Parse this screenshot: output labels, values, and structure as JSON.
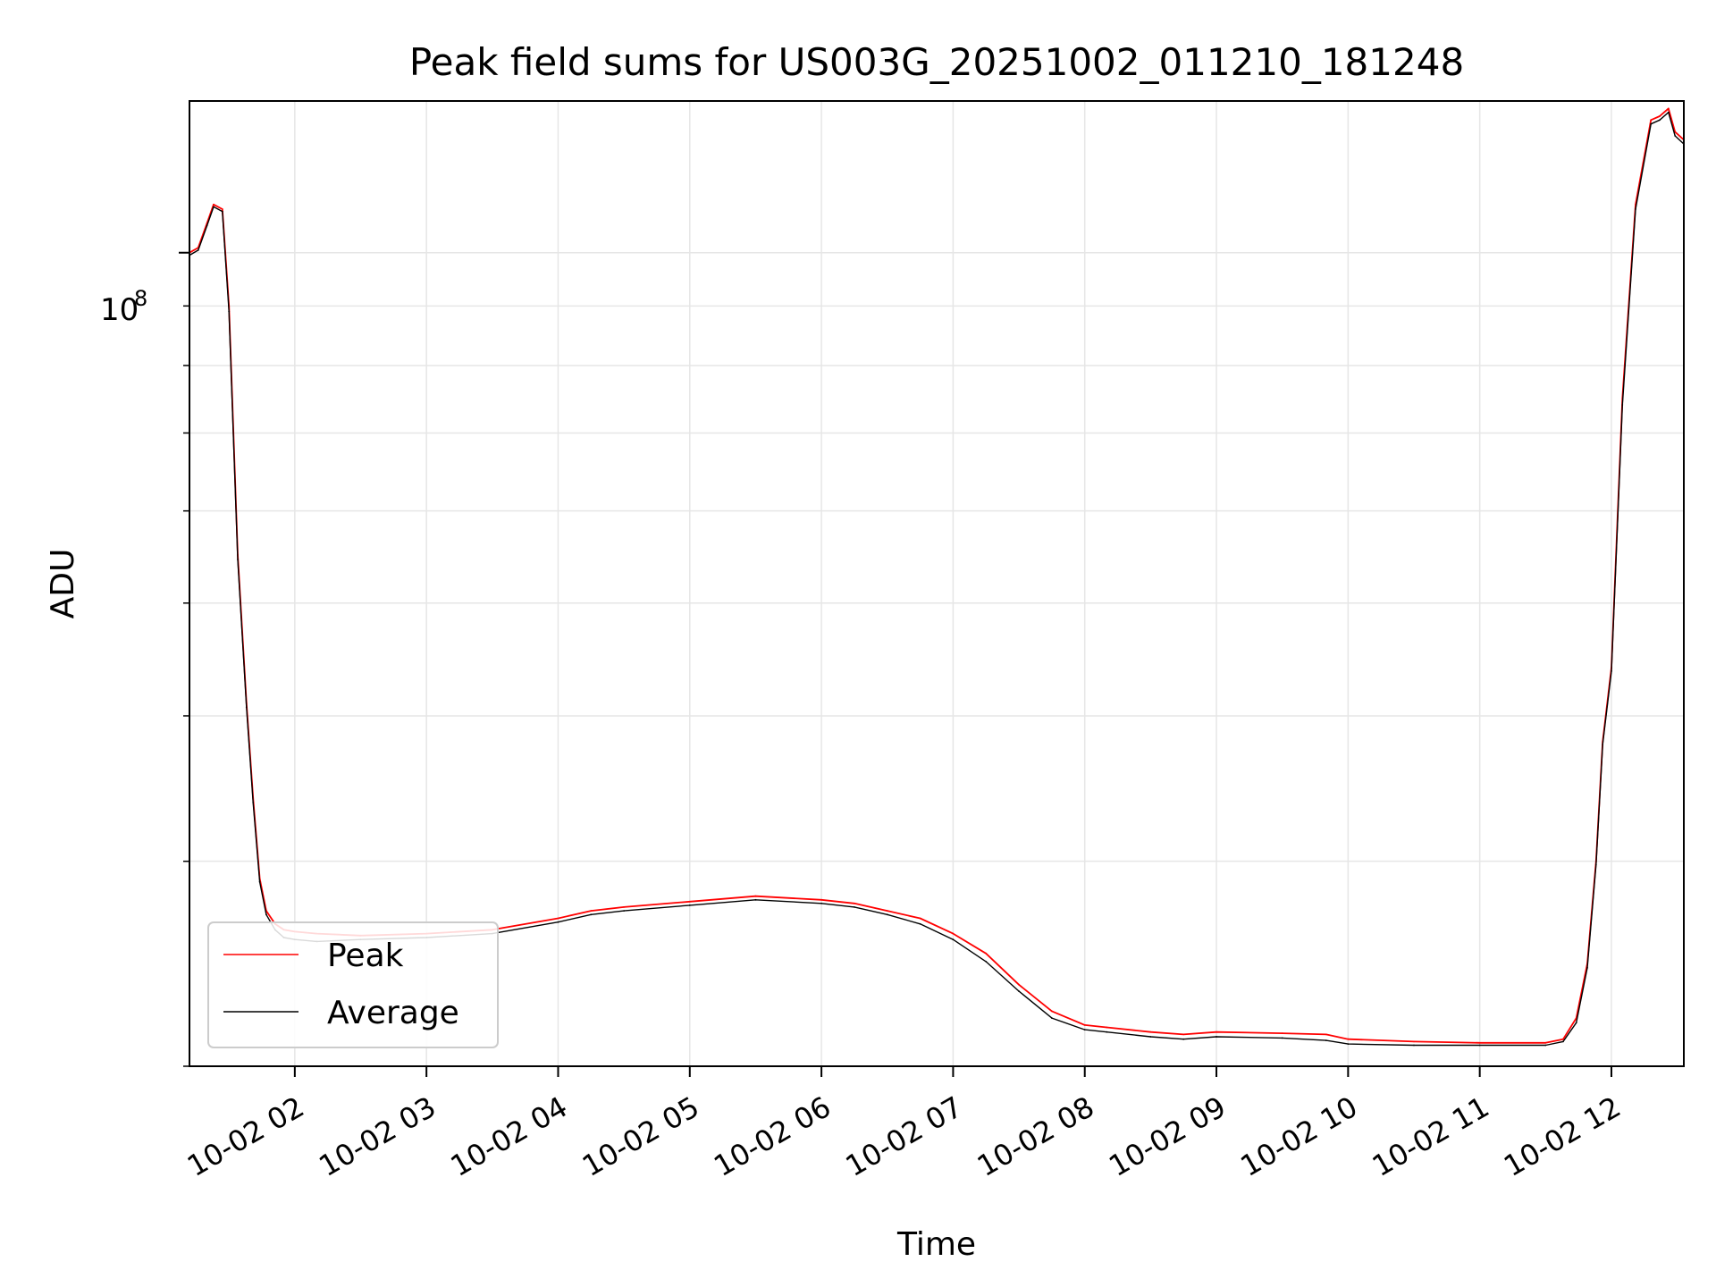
{
  "chart_data": {
    "type": "line",
    "title": "Peak field sums for US003G_20251002_011210_181248",
    "xlabel": "Time",
    "ylabel": "ADU",
    "yscale": "log",
    "xlim": [
      "2025-10-02 01:12",
      "2025-10-02 12:33"
    ],
    "ylim": [
      20000000,
      135000000
    ],
    "x_ticks": [
      "10-02 02",
      "10-02 03",
      "10-02 04",
      "10-02 05",
      "10-02 06",
      "10-02 07",
      "10-02 08",
      "10-02 09",
      "10-02 10",
      "10-02 11",
      "10-02 12"
    ],
    "y_ticks": [
      {
        "value": 100000000,
        "label": "10",
        "exponent": "8"
      }
    ],
    "y_minor_ticks": [
      20000000,
      30000000,
      40000000,
      50000000,
      60000000,
      70000000,
      80000000,
      90000000
    ],
    "grid": true,
    "legend": "lower-left",
    "series": [
      {
        "name": "Peak",
        "color": "#ff0000",
        "x": [
          "2025-10-02 01:12",
          "2025-10-02 01:16",
          "2025-10-02 01:20",
          "2025-10-02 01:23",
          "2025-10-02 01:27",
          "2025-10-02 01:30",
          "2025-10-02 01:34",
          "2025-10-02 01:38",
          "2025-10-02 01:41",
          "2025-10-02 01:44",
          "2025-10-02 01:47",
          "2025-10-02 01:51",
          "2025-10-02 01:55",
          "2025-10-02 02:00",
          "2025-10-02 02:10",
          "2025-10-02 02:30",
          "2025-10-02 03:00",
          "2025-10-02 03:30",
          "2025-10-02 04:00",
          "2025-10-02 04:15",
          "2025-10-02 04:30",
          "2025-10-02 05:00",
          "2025-10-02 05:30",
          "2025-10-02 06:00",
          "2025-10-02 06:15",
          "2025-10-02 06:30",
          "2025-10-02 06:45",
          "2025-10-02 07:00",
          "2025-10-02 07:15",
          "2025-10-02 07:30",
          "2025-10-02 07:45",
          "2025-10-02 08:00",
          "2025-10-02 08:10",
          "2025-10-02 08:30",
          "2025-10-02 08:45",
          "2025-10-02 09:00",
          "2025-10-02 09:30",
          "2025-10-02 09:50",
          "2025-10-02 10:00",
          "2025-10-02 10:30",
          "2025-10-02 11:00",
          "2025-10-02 11:30",
          "2025-10-02 11:38",
          "2025-10-02 11:44",
          "2025-10-02 11:49",
          "2025-10-02 11:53",
          "2025-10-02 11:56",
          "2025-10-02 12:00",
          "2025-10-02 12:05",
          "2025-10-02 12:11",
          "2025-10-02 12:18",
          "2025-10-02 12:22",
          "2025-10-02 12:26",
          "2025-10-02 12:29",
          "2025-10-02 12:33"
        ],
        "values": [
          100000000,
          101000000,
          106000000,
          110000000,
          109000000,
          90000000,
          55000000,
          41000000,
          34000000,
          29000000,
          27200000,
          26500000,
          26200000,
          26100000,
          26000000,
          25900000,
          26000000,
          26200000,
          26800000,
          27200000,
          27400000,
          27700000,
          28000000,
          27800000,
          27600000,
          27200000,
          26800000,
          26000000,
          25000000,
          23500000,
          22300000,
          21700000,
          21600000,
          21400000,
          21300000,
          21400000,
          21350000,
          21300000,
          21100000,
          21000000,
          20950000,
          20950000,
          21100000,
          22000000,
          24500000,
          30000000,
          38000000,
          44000000,
          75000000,
          110000000,
          130000000,
          131000000,
          133000000,
          127000000,
          125000000
        ]
      },
      {
        "name": "Average",
        "color": "#000000",
        "x": [
          "2025-10-02 01:12",
          "2025-10-02 01:16",
          "2025-10-02 01:20",
          "2025-10-02 01:23",
          "2025-10-02 01:27",
          "2025-10-02 01:30",
          "2025-10-02 01:34",
          "2025-10-02 01:38",
          "2025-10-02 01:41",
          "2025-10-02 01:44",
          "2025-10-02 01:47",
          "2025-10-02 01:51",
          "2025-10-02 01:55",
          "2025-10-02 02:00",
          "2025-10-02 02:10",
          "2025-10-02 02:30",
          "2025-10-02 03:00",
          "2025-10-02 03:30",
          "2025-10-02 04:00",
          "2025-10-02 04:15",
          "2025-10-02 04:30",
          "2025-10-02 05:00",
          "2025-10-02 05:30",
          "2025-10-02 06:00",
          "2025-10-02 06:15",
          "2025-10-02 06:30",
          "2025-10-02 06:45",
          "2025-10-02 07:00",
          "2025-10-02 07:15",
          "2025-10-02 07:30",
          "2025-10-02 07:45",
          "2025-10-02 08:00",
          "2025-10-02 08:10",
          "2025-10-02 08:30",
          "2025-10-02 08:45",
          "2025-10-02 09:00",
          "2025-10-02 09:30",
          "2025-10-02 09:50",
          "2025-10-02 10:00",
          "2025-10-02 10:30",
          "2025-10-02 11:00",
          "2025-10-02 11:30",
          "2025-10-02 11:38",
          "2025-10-02 11:44",
          "2025-10-02 11:49",
          "2025-10-02 11:53",
          "2025-10-02 11:56",
          "2025-10-02 12:00",
          "2025-10-02 12:05",
          "2025-10-02 12:11",
          "2025-10-02 12:18",
          "2025-10-02 12:22",
          "2025-10-02 12:26",
          "2025-10-02 12:29",
          "2025-10-02 12:33"
        ],
        "values": [
          99500000,
          100500000,
          105500000,
          109500000,
          108500000,
          89000000,
          54500000,
          40700000,
          33700000,
          28800000,
          27000000,
          26200000,
          25800000,
          25700000,
          25600000,
          25700000,
          25800000,
          26000000,
          26600000,
          27000000,
          27200000,
          27500000,
          27800000,
          27600000,
          27400000,
          27000000,
          26500000,
          25700000,
          24600000,
          23200000,
          22000000,
          21500000,
          21400000,
          21200000,
          21100000,
          21200000,
          21150000,
          21050000,
          20900000,
          20850000,
          20850000,
          20850000,
          21000000,
          21800000,
          24300000,
          29800000,
          37800000,
          43700000,
          74000000,
          109000000,
          129000000,
          130000000,
          132000000,
          126000000,
          124000000
        ]
      }
    ]
  }
}
